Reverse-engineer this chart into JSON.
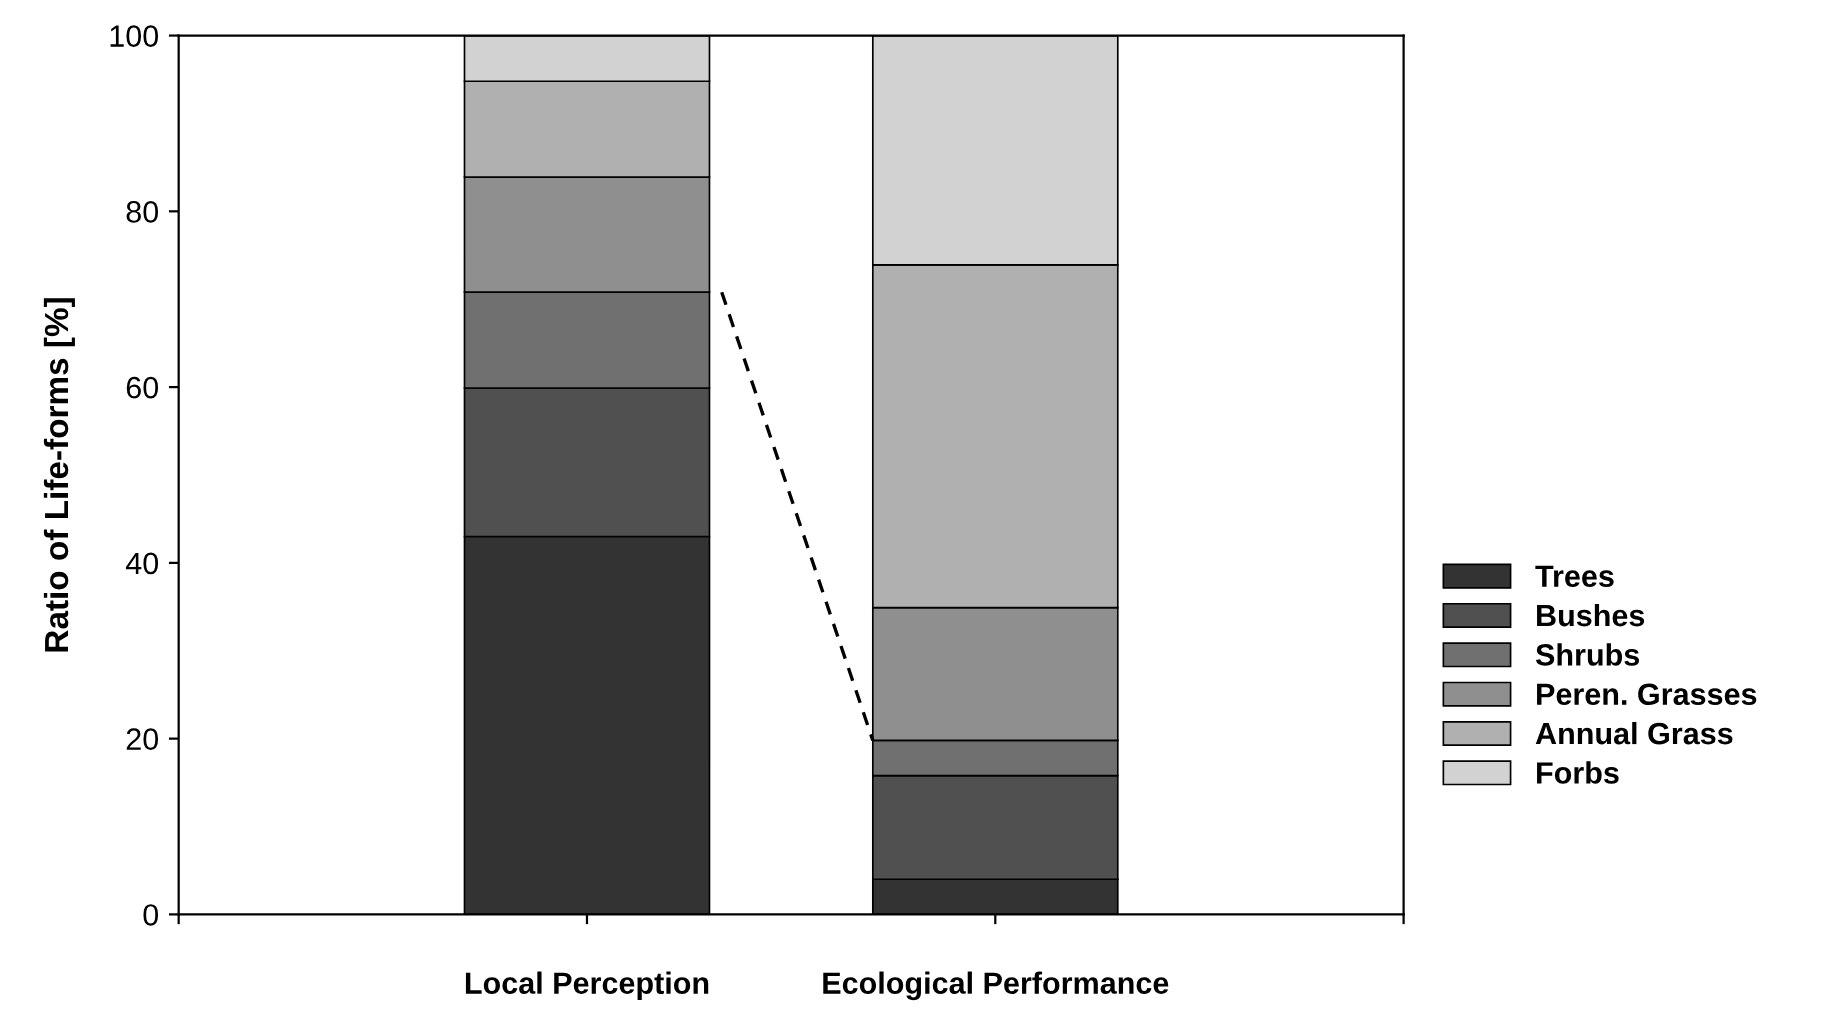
{
  "chart_data": {
    "type": "bar",
    "stacked": true,
    "ylabel": "Ratio of Life-forms [%]",
    "categories": [
      "Local Perception",
      "Ecological Performance"
    ],
    "series": [
      {
        "name": "Trees",
        "color": "#333333",
        "values": [
          43,
          4
        ]
      },
      {
        "name": "Bushes",
        "color": "#505050",
        "values": [
          16.9,
          11.8
        ]
      },
      {
        "name": "Shrubs",
        "color": "#707070",
        "values": [
          10.9,
          4
        ]
      },
      {
        "name": "Peren. Grasses",
        "color": "#8f8f8f",
        "values": [
          13.1,
          15.1
        ]
      },
      {
        "name": "Annual Grass",
        "color": "#b0b0b0",
        "values": [
          10.9,
          39
        ]
      },
      {
        "name": "Forbs",
        "color": "#d2d2d2",
        "values": [
          5.2,
          26.1
        ]
      }
    ],
    "ylim": [
      0,
      100
    ],
    "yticks": [
      0,
      20,
      40,
      60,
      80,
      100
    ],
    "grid": false,
    "legend": "right"
  }
}
